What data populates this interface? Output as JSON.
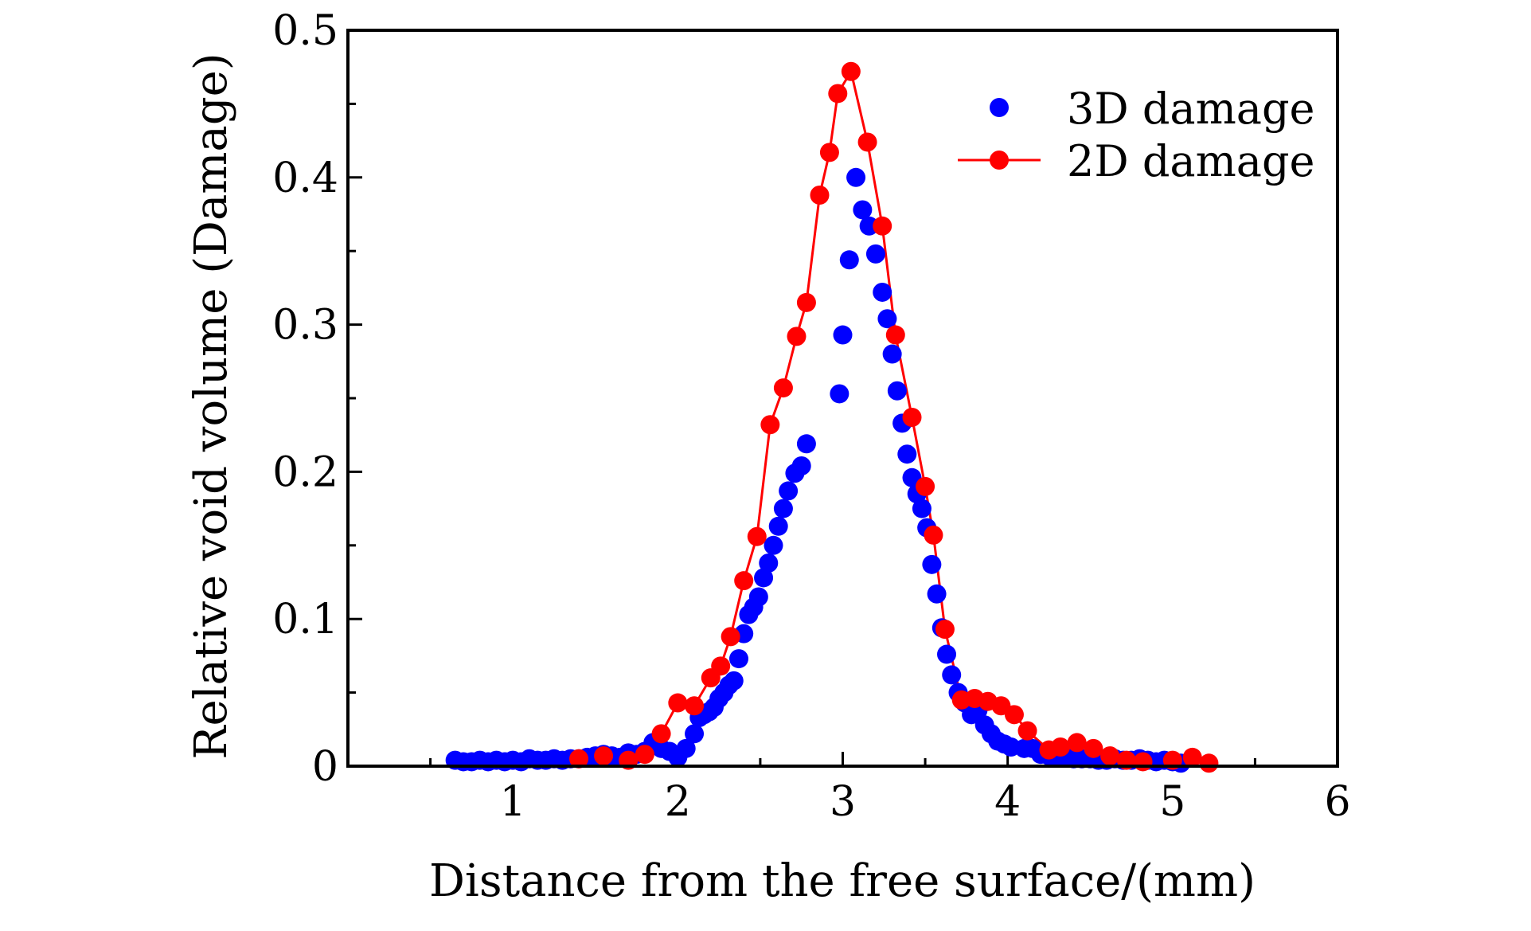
{
  "chart_data": {
    "type": "scatter",
    "title": "",
    "xlabel": "Distance from the free surface/(mm)",
    "ylabel": "Relative void volume (Damage)",
    "xlim": [
      0,
      6
    ],
    "ylim": [
      0,
      0.5
    ],
    "x_ticks": [
      1,
      2,
      3,
      4,
      5,
      6
    ],
    "x_tick_labels": [
      "1",
      "2",
      "3",
      "4",
      "5",
      "6"
    ],
    "y_ticks": [
      0,
      0.1,
      0.2,
      0.3,
      0.4,
      0.5
    ],
    "y_tick_labels": [
      "0",
      "0.1",
      "0.2",
      "0.3",
      "0.4",
      "0.5"
    ],
    "grid": false,
    "legend_position": "top-right",
    "series": [
      {
        "name": "3D damage",
        "style": "markers",
        "color": "#0000ff",
        "x": [
          0.65,
          0.7,
          0.75,
          0.8,
          0.85,
          0.9,
          0.95,
          1.0,
          1.05,
          1.1,
          1.15,
          1.2,
          1.25,
          1.3,
          1.35,
          1.4,
          1.45,
          1.5,
          1.55,
          1.6,
          1.65,
          1.7,
          1.75,
          1.8,
          1.85,
          1.9,
          1.95,
          2.0,
          2.05,
          2.1,
          2.13,
          2.16,
          2.19,
          2.22,
          2.25,
          2.28,
          2.31,
          2.34,
          2.37,
          2.4,
          2.43,
          2.46,
          2.49,
          2.52,
          2.55,
          2.58,
          2.61,
          2.64,
          2.67,
          2.71,
          2.75,
          2.78,
          2.98,
          3.0,
          3.04,
          3.08,
          3.12,
          3.16,
          3.2,
          3.24,
          3.27,
          3.3,
          3.33,
          3.36,
          3.39,
          3.42,
          3.45,
          3.48,
          3.51,
          3.54,
          3.57,
          3.6,
          3.63,
          3.66,
          3.7,
          3.74,
          3.78,
          3.82,
          3.86,
          3.9,
          3.94,
          3.98,
          4.02,
          4.1,
          4.15,
          4.2,
          4.25,
          4.3,
          4.35,
          4.4,
          4.45,
          4.5,
          4.55,
          4.6,
          4.65,
          4.7,
          4.75,
          4.8,
          4.85,
          4.9,
          4.95,
          5.0,
          5.05
        ],
        "y": [
          0.004,
          0.003,
          0.003,
          0.004,
          0.003,
          0.004,
          0.003,
          0.004,
          0.003,
          0.005,
          0.004,
          0.004,
          0.005,
          0.004,
          0.005,
          0.005,
          0.006,
          0.007,
          0.008,
          0.007,
          0.006,
          0.009,
          0.008,
          0.01,
          0.016,
          0.012,
          0.01,
          0.006,
          0.012,
          0.022,
          0.033,
          0.035,
          0.037,
          0.04,
          0.046,
          0.05,
          0.055,
          0.058,
          0.073,
          0.09,
          0.103,
          0.108,
          0.115,
          0.128,
          0.138,
          0.15,
          0.163,
          0.175,
          0.187,
          0.199,
          0.204,
          0.219,
          0.253,
          0.293,
          0.344,
          0.4,
          0.378,
          0.367,
          0.348,
          0.322,
          0.304,
          0.28,
          0.255,
          0.233,
          0.212,
          0.196,
          0.185,
          0.175,
          0.162,
          0.137,
          0.117,
          0.094,
          0.076,
          0.062,
          0.05,
          0.043,
          0.035,
          0.038,
          0.028,
          0.022,
          0.017,
          0.015,
          0.013,
          0.012,
          0.012,
          0.008,
          0.007,
          0.006,
          0.006,
          0.005,
          0.005,
          0.005,
          0.004,
          0.004,
          0.005,
          0.004,
          0.004,
          0.005,
          0.004,
          0.003,
          0.004,
          0.003,
          0.002
        ]
      },
      {
        "name": "2D damage",
        "style": "line+markers",
        "color": "#ff0000",
        "x": [
          1.4,
          1.55,
          1.7,
          1.8,
          1.9,
          2.0,
          2.1,
          2.2,
          2.26,
          2.32,
          2.4,
          2.48,
          2.56,
          2.64,
          2.72,
          2.78,
          2.86,
          2.92,
          2.97,
          3.05,
          3.15,
          3.24,
          3.32,
          3.42,
          3.5,
          3.55,
          3.62,
          3.72,
          3.8,
          3.88,
          3.96,
          4.04,
          4.12,
          4.25,
          4.32,
          4.42,
          4.52,
          4.62,
          4.72,
          4.82,
          5.0,
          5.12,
          5.22
        ],
        "y": [
          0.005,
          0.007,
          0.004,
          0.008,
          0.022,
          0.043,
          0.041,
          0.06,
          0.068,
          0.088,
          0.126,
          0.156,
          0.232,
          0.257,
          0.292,
          0.315,
          0.388,
          0.417,
          0.457,
          0.472,
          0.424,
          0.367,
          0.293,
          0.237,
          0.19,
          0.157,
          0.093,
          0.045,
          0.046,
          0.044,
          0.041,
          0.035,
          0.024,
          0.011,
          0.013,
          0.016,
          0.012,
          0.007,
          0.004,
          0.003,
          0.004,
          0.006,
          0.002
        ]
      }
    ]
  }
}
